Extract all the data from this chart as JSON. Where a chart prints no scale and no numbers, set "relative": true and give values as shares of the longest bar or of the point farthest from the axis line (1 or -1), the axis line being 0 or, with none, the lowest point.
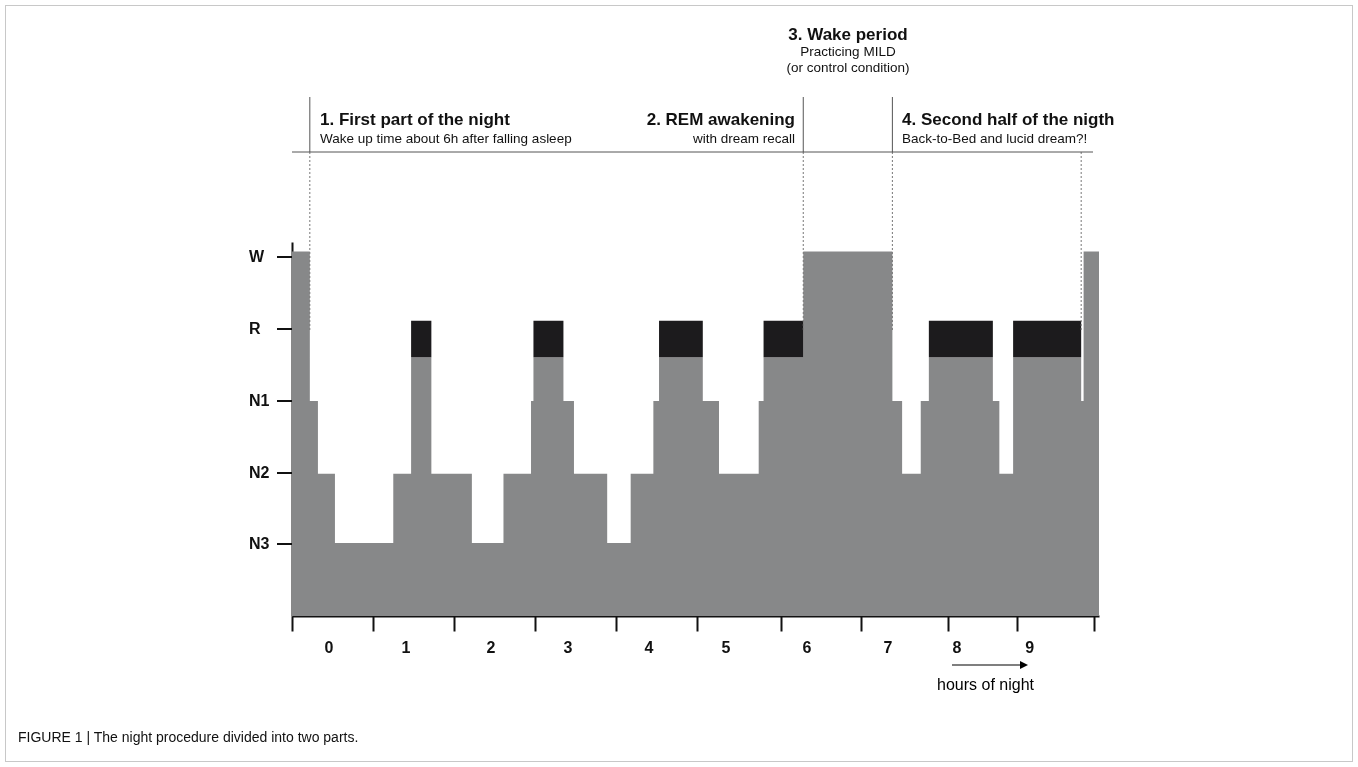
{
  "chart_data": {
    "type": "area",
    "stacked": true,
    "legend": false,
    "grid": false,
    "x": [
      0,
      0.22,
      0.32,
      0.53,
      1.25,
      1.47,
      1.72,
      2.22,
      2.61,
      2.95,
      2.98,
      3.35,
      3.48,
      3.89,
      4.18,
      4.46,
      4.53,
      5.07,
      5.27,
      5.76,
      5.82,
      6.31,
      7.41,
      7.53,
      7.76,
      7.86,
      8.65,
      8.73,
      8.9,
      9.74,
      9.77,
      9.96
    ],
    "series": [
      {
        "color": "#878889",
        "values": [
          1,
          0.59,
          0.39,
          0.2,
          0.39,
          0.71,
          0.39,
          0.2,
          0.39,
          0.59,
          0.71,
          0.59,
          0.39,
          0.2,
          0.39,
          0.59,
          0.71,
          0.59,
          0.39,
          0.59,
          0.71,
          1,
          0.59,
          0.39,
          0.59,
          0.71,
          0.59,
          0.39,
          0.71,
          0.59,
          1,
          1
        ]
      },
      {
        "color": "#1c1b1d",
        "values": [
          0,
          0,
          0,
          0,
          0,
          0.1,
          0,
          0,
          0,
          0,
          0.1,
          0,
          0,
          0,
          0,
          0,
          0.1,
          0,
          0,
          0,
          0.1,
          0,
          0,
          0,
          0,
          0.1,
          0,
          0,
          0.1,
          0,
          0,
          0
        ]
      }
    ],
    "relative": true,
    "xlim": [
      0,
      9.96
    ],
    "xticks": [
      {
        "value": 0,
        "label": null
      },
      {
        "value": 0.45,
        "label": "0"
      },
      {
        "value": 1,
        "label": null
      },
      {
        "value": 1.4,
        "label": "1"
      },
      {
        "value": 2,
        "label": null
      },
      {
        "value": 2.45,
        "label": "2"
      },
      {
        "value": 3,
        "label": null
      },
      {
        "value": 3.4,
        "label": "3"
      },
      {
        "value": 4,
        "label": null
      },
      {
        "value": 4.4,
        "label": "4"
      },
      {
        "value": 5,
        "label": null
      },
      {
        "value": 5.35,
        "label": "5"
      },
      {
        "value": 6.03,
        "label": null
      },
      {
        "value": 6.35,
        "label": "6"
      },
      {
        "value": 7.02,
        "label": null
      },
      {
        "value": 7.35,
        "label": "7"
      },
      {
        "value": 8.1,
        "label": null
      },
      {
        "value": 8.2,
        "label": "8"
      },
      {
        "value": 8.95,
        "label": null
      },
      {
        "value": 9.1,
        "label": "9"
      },
      {
        "value": 9.9,
        "label": null
      }
    ],
    "xlabel": "hours of night",
    "ref_lines": [
      {
        "axis": "x",
        "value": 0.22,
        "line_style": "dotted",
        "color": "#777777"
      },
      {
        "axis": "x",
        "value": 6.31,
        "line_style": "dotted",
        "color": "#777777"
      },
      {
        "axis": "x",
        "value": 7.41,
        "line_style": "dotted",
        "color": "#777777"
      },
      {
        "axis": "x",
        "value": 9.74,
        "line_style": "dotted",
        "color": "#777777"
      }
    ],
    "annotations": [
      "1. First part of the night",
      "Wake up time about 6h after falling asleep",
      "2. REM awakening",
      "with dream recall",
      "3. Wake period",
      "Practicing MILD",
      "(or control condition)",
      "4. Second half of the nigth",
      "Back-to-Bed and lucid dream?!",
      "FIGURE 1 | The night procedure divided into two parts.",
      "W",
      "R",
      "N1",
      "N2",
      "N3"
    ]
  }
}
